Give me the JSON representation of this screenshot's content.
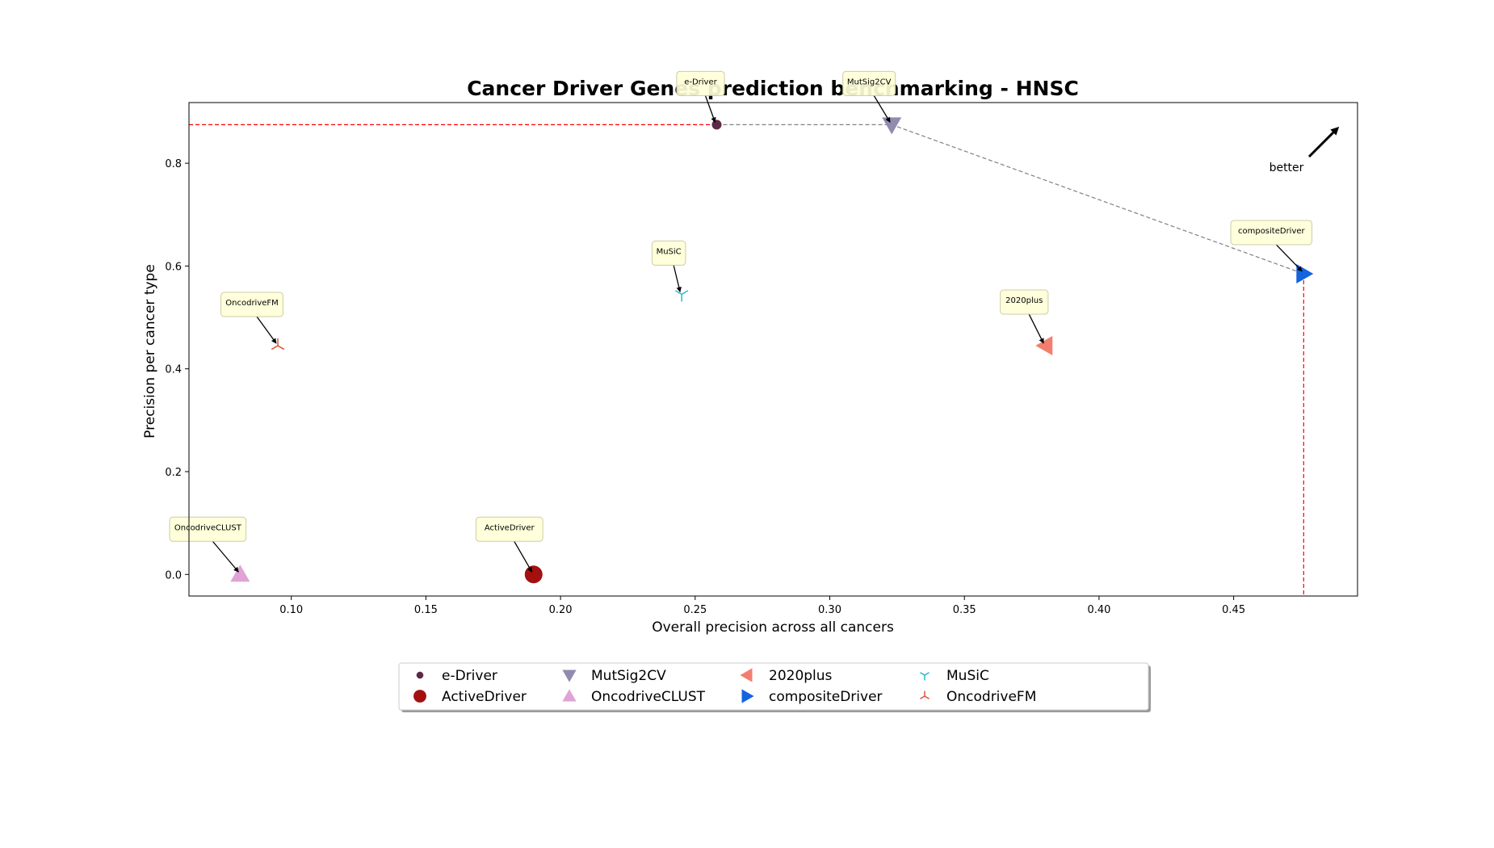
{
  "chart_data": {
    "type": "scatter",
    "title": "Cancer Driver Genes prediction benchmarking - HNSC",
    "xlabel": "Overall precision across all cancers",
    "ylabel": "Precision per cancer type",
    "xlim": [
      0.062,
      0.496
    ],
    "ylim": [
      -0.042,
      0.918
    ],
    "xticks": [
      0.1,
      0.15,
      0.2,
      0.25,
      0.3,
      0.35,
      0.4,
      0.45
    ],
    "xtick_labels": [
      "0.10",
      "0.15",
      "0.20",
      "0.25",
      "0.30",
      "0.35",
      "0.40",
      "0.45"
    ],
    "yticks": [
      0.0,
      0.2,
      0.4,
      0.6,
      0.8
    ],
    "ytick_labels": [
      "0.0",
      "0.2",
      "0.4",
      "0.6",
      "0.8"
    ],
    "grid": false,
    "legend_placement": "bottom-center",
    "better_label": "better",
    "series": [
      {
        "name": "e-Driver",
        "x": 0.258,
        "y": 0.875,
        "marker": "circle-small",
        "color": "#5c2a47",
        "annotation": "e-Driver"
      },
      {
        "name": "ActiveDriver",
        "x": 0.19,
        "y": 0.0,
        "marker": "circle-large",
        "color": "#a31010",
        "annotation": "ActiveDriver"
      },
      {
        "name": "MutSig2CV",
        "x": 0.323,
        "y": 0.875,
        "marker": "triangle-down",
        "color": "#908cb0",
        "annotation": "MutSig2CV"
      },
      {
        "name": "OncodriveCLUST",
        "x": 0.081,
        "y": 0.0,
        "marker": "triangle-up",
        "color": "#e0a3d6",
        "annotation": "OncodriveCLUST"
      },
      {
        "name": "2020plus",
        "x": 0.38,
        "y": 0.445,
        "marker": "triangle-left",
        "color": "#f47e6e",
        "annotation": "2020plus"
      },
      {
        "name": "compositeDriver",
        "x": 0.476,
        "y": 0.585,
        "marker": "triangle-right",
        "color": "#1464e0",
        "annotation": "compositeDriver"
      },
      {
        "name": "MuSiC",
        "x": 0.245,
        "y": 0.545,
        "marker": "tri-down",
        "color": "#2ab8cc",
        "annotation": "MuSiC"
      },
      {
        "name": "OncodriveFM",
        "x": 0.095,
        "y": 0.445,
        "marker": "tri-up",
        "color": "#e0523a",
        "annotation": "OncodriveFM"
      }
    ],
    "pareto_front": [
      {
        "x": 0.258,
        "y": 0.875
      },
      {
        "x": 0.323,
        "y": 0.875
      },
      {
        "x": 0.476,
        "y": 0.585
      }
    ],
    "reference_lines": {
      "horizontal_y": 0.875,
      "vertical_x": 0.476,
      "color": "#ff0000"
    },
    "colors": {
      "pareto_line": "#808080",
      "annotation_box": "#ffffd9",
      "annotation_border": "#c8c8a0"
    }
  }
}
